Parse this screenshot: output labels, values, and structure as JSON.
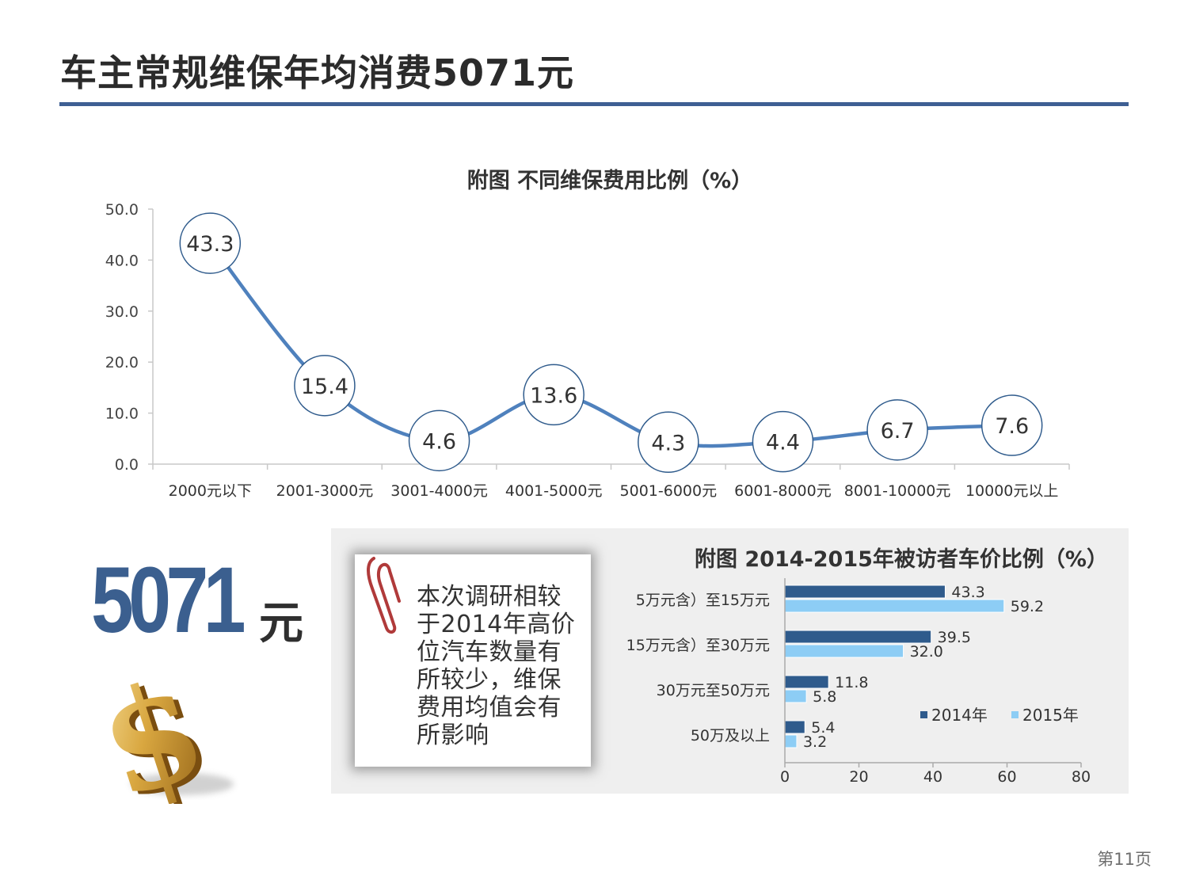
{
  "page": {
    "title": "车主常规维保年均消费5071元",
    "page_number": "第11页"
  },
  "highlight": {
    "number": "5071",
    "unit": "元"
  },
  "note": {
    "text": "本次调研相较于2014年高价位汽车数量有所较少，维保费用均值会有所影响"
  },
  "colors": {
    "title_rule": "#3e5f93",
    "line": "#4f81bd",
    "series_2014": "#2f5b8c",
    "series_2015": "#8dcdf5",
    "big_number": "#3b5f8f"
  },
  "icons": [
    "dollar-icon",
    "paperclip-icon"
  ],
  "chart_data": [
    {
      "type": "line",
      "title": "附图   不同维保费用比例（%）",
      "categories": [
        "2000元以下",
        "2001-3000元",
        "3001-4000元",
        "4001-5000元",
        "5001-6000元",
        "6001-8000元",
        "8001-10000元",
        "10000元以上"
      ],
      "values": [
        43.3,
        15.4,
        4.6,
        13.6,
        4.3,
        4.4,
        6.7,
        7.6
      ],
      "value_labels": [
        "43.3",
        "15.4",
        "4.6",
        "13.6",
        "4.3",
        "4.4",
        "6.7",
        "7.6"
      ],
      "ylim": [
        0,
        50
      ],
      "yticks": [
        "0.0",
        "10.0",
        "20.0",
        "30.0",
        "40.0",
        "50.0"
      ],
      "grid": false,
      "smooth": true,
      "markers": "circle-labels"
    },
    {
      "type": "bar",
      "orientation": "horizontal",
      "title": "附图   2014-2015年被访者车价比例（%）",
      "categories": [
        "5万元含）至15万元",
        "15万元含）至30万元",
        "30万元至50万元",
        "50万及以上"
      ],
      "series": [
        {
          "name": "2014年",
          "values": [
            43.3,
            39.5,
            11.8,
            5.4
          ],
          "labels": [
            "43.3",
            "39.5",
            "11.8",
            "5.4"
          ]
        },
        {
          "name": "2015年",
          "values": [
            59.2,
            32.0,
            5.8,
            3.2
          ],
          "labels": [
            "59.2",
            "32.0",
            "5.8",
            "3.2"
          ]
        }
      ],
      "xlim": [
        0,
        80
      ],
      "xticks": [
        "0",
        "20",
        "40",
        "60",
        "80"
      ],
      "legend": "right",
      "grid": false
    }
  ]
}
